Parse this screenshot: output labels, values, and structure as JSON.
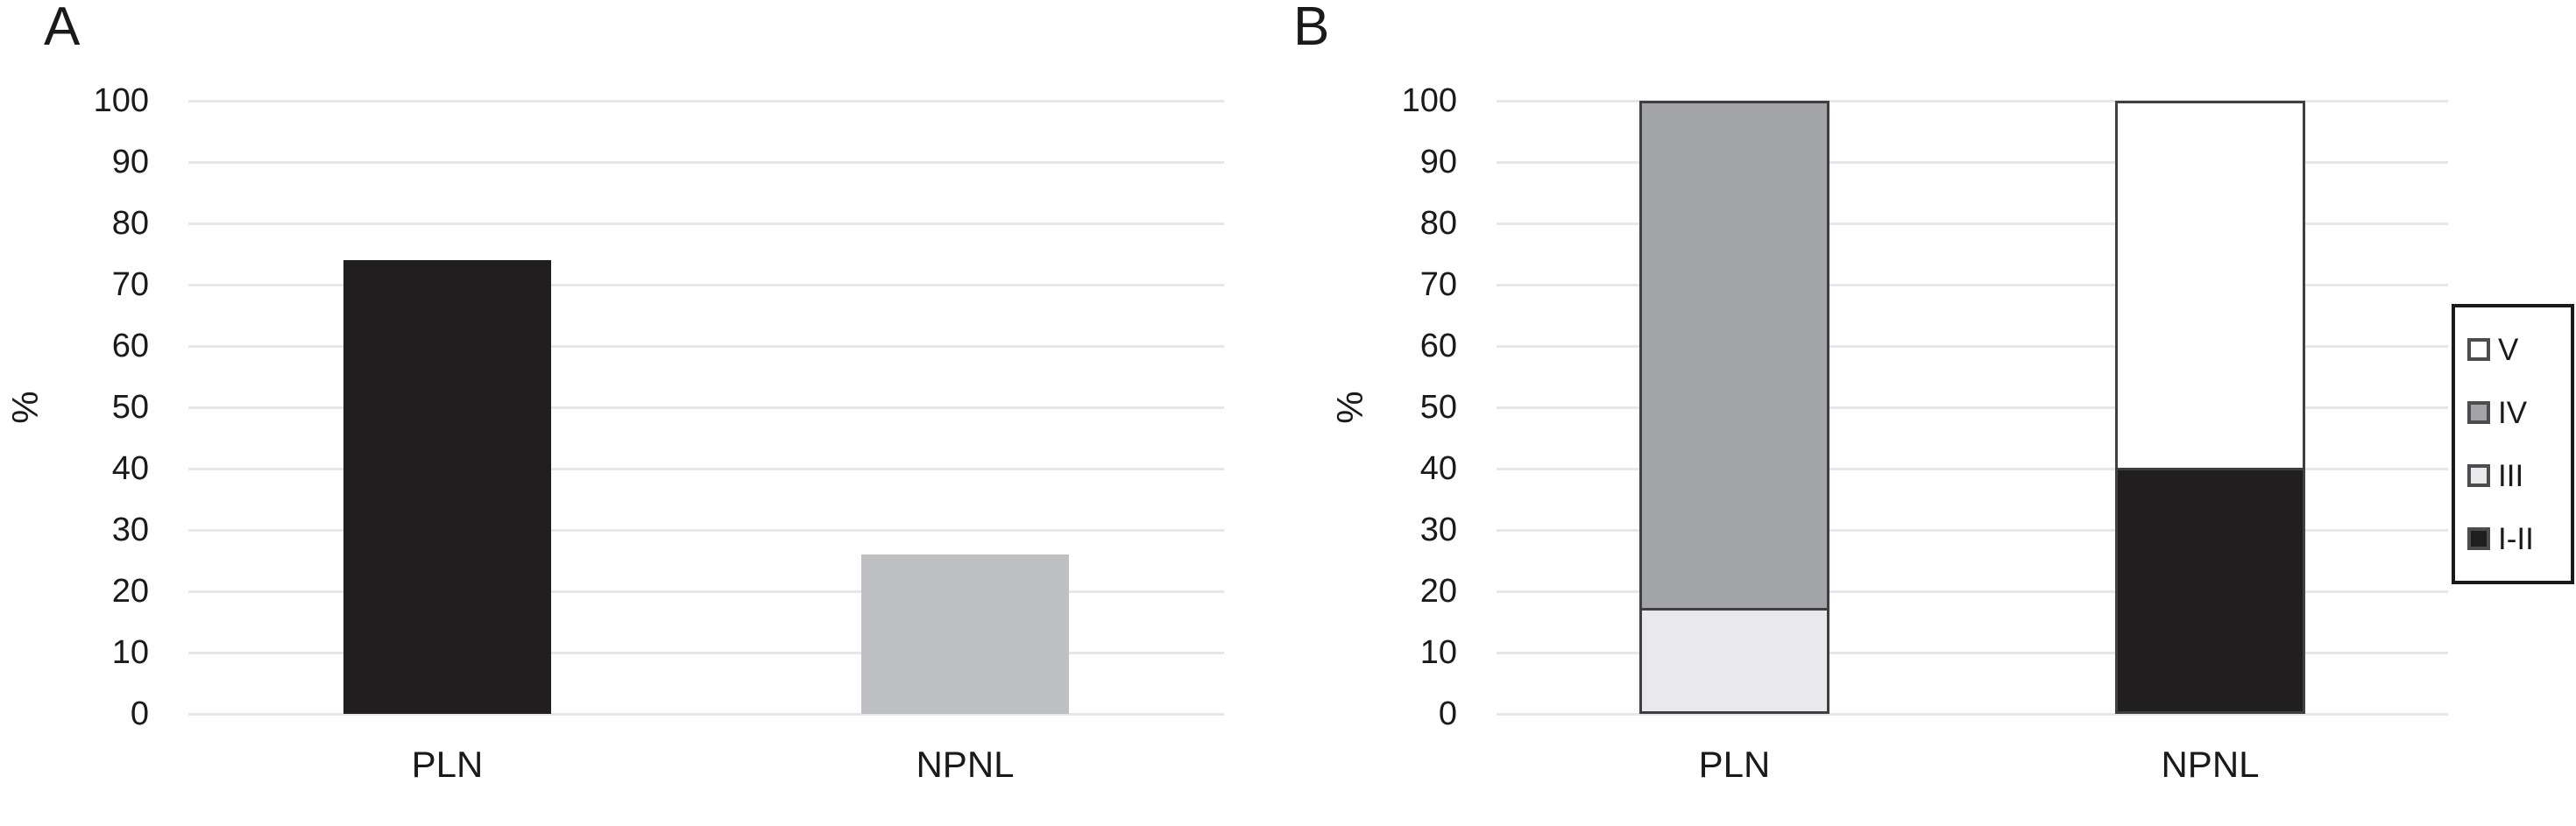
{
  "figure": {
    "background": "#ffffff"
  },
  "colors": {
    "text": "#1a1a1a",
    "gridline": "#e7e7e7",
    "segment_outline": "#3f3f41",
    "legend_border": "#1a1a1a",
    "swatch_border": "#4d4d4f"
  },
  "chart_data": [
    {
      "panel_label": "A",
      "type": "bar",
      "title": "",
      "xlabel": "",
      "ylabel": "%",
      "categories": [
        "PLN",
        "NPNL"
      ],
      "values": [
        74,
        26
      ],
      "bar_colors": [
        "#211e1f",
        "#bfc0c3"
      ],
      "ylim": [
        0,
        100
      ],
      "yticks": [
        0,
        10,
        20,
        30,
        40,
        50,
        60,
        70,
        80,
        90,
        100
      ],
      "grid": true,
      "legend": null,
      "layout": {
        "bar_centers_pct": [
          25,
          75
        ],
        "bar_width_pct": 20
      }
    },
    {
      "panel_label": "B",
      "type": "stacked-bar",
      "title": "",
      "xlabel": "",
      "ylabel": "%",
      "categories": [
        "PLN",
        "NPNL"
      ],
      "series": [
        {
          "name": "I-II",
          "color": "#211e1f",
          "values": [
            0,
            40
          ]
        },
        {
          "name": "III",
          "color": "#e9e9eb",
          "values": [
            17,
            0
          ]
        },
        {
          "name": "IV",
          "color": "#a3a4a8",
          "values": [
            83,
            0
          ]
        },
        {
          "name": "V",
          "color": "#ffffff",
          "values": [
            0,
            60
          ]
        }
      ],
      "ylim": [
        0,
        100
      ],
      "yticks": [
        0,
        10,
        20,
        30,
        40,
        50,
        60,
        70,
        80,
        90,
        100
      ],
      "grid": true,
      "legend": {
        "position": "right",
        "entries": [
          {
            "label": "V",
            "color": "#ffffff"
          },
          {
            "label": "IV",
            "color": "#a3a4a8"
          },
          {
            "label": "III",
            "color": "#e9e9eb"
          },
          {
            "label": "I-II",
            "color": "#211e1f"
          }
        ]
      },
      "layout": {
        "bar_centers_pct": [
          25,
          75
        ],
        "bar_width_pct": 20
      }
    }
  ]
}
